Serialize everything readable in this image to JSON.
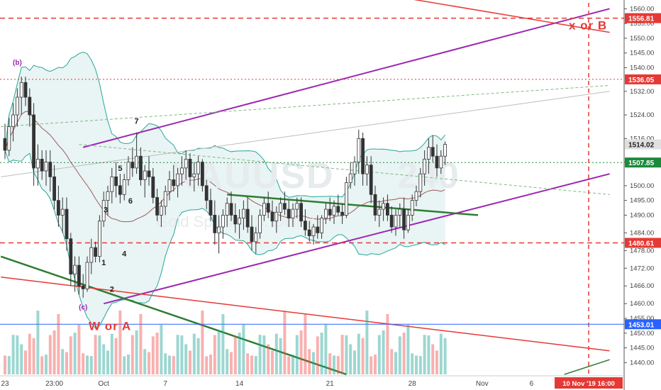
{
  "chart_data": {
    "type": "candlestick",
    "title": "",
    "watermark": {
      "symbol": "XAUUSD",
      "timeframe": "240",
      "name": "Gold Spot / U.S. Dollar"
    },
    "y_axis": {
      "min": 1436,
      "max": 1562,
      "ticks": [
        1560,
        1555,
        1550,
        1545,
        1540,
        1532,
        1524,
        1516,
        1508,
        1500,
        1495,
        1490,
        1484,
        1478,
        1472,
        1466,
        1460,
        1455,
        1450,
        1445,
        1440
      ]
    },
    "x_axis": {
      "ticks": [
        {
          "label": "23",
          "index": 0
        },
        {
          "label": "23:00",
          "index": 12
        },
        {
          "label": "Oct",
          "index": 24
        },
        {
          "label": "7",
          "index": 39
        },
        {
          "label": "14",
          "index": 57
        },
        {
          "label": "21",
          "index": 79
        },
        {
          "label": "28",
          "index": 99
        },
        {
          "label": "Nov",
          "index": 116
        },
        {
          "label": "6",
          "index": 128
        },
        {
          "label": "13",
          "index": 143
        }
      ],
      "cursor_label": "10 Nov '19   16:00"
    },
    "price_levels": [
      {
        "value": 1556.81,
        "label": "1556.81",
        "color": "#e53935",
        "style": "dashed"
      },
      {
        "value": 1536.05,
        "label": "1536.05",
        "color": "#e53935",
        "style": "dotted"
      },
      {
        "value": 1480.61,
        "label": "1480.61",
        "color": "#e53935",
        "style": "dashed"
      },
      {
        "value": 1507.85,
        "label": "1507.85",
        "color": "#1b8a3a",
        "style": "dotted"
      },
      {
        "value": 1453.01,
        "label": "1453.01",
        "color": "#2962ff",
        "style": "solid"
      }
    ],
    "last_price": {
      "value": 1514.02,
      "label": "1514.02"
    },
    "wave_labels": [
      {
        "text": "(b)",
        "index": 3,
        "price": 1541
      },
      {
        "text": "(c)",
        "index": 19,
        "price": 1458
      },
      {
        "text": "1",
        "index": 24,
        "price": 1473
      },
      {
        "text": "2",
        "index": 26,
        "price": 1464
      },
      {
        "text": "3",
        "index": 24.5,
        "price": 1491
      },
      {
        "text": "4",
        "index": 29,
        "price": 1476
      },
      {
        "text": "5",
        "index": 28,
        "price": 1505
      },
      {
        "text": "6",
        "index": 30.5,
        "price": 1494
      },
      {
        "text": "7",
        "index": 32,
        "price": 1521
      }
    ],
    "annotations": [
      {
        "text": "W or A",
        "index": 27,
        "price": 1451,
        "color": "#e53935"
      },
      {
        "text": "x or B",
        "index": 137,
        "price": 1553,
        "color": "#e53935"
      }
    ],
    "colors": {
      "up": "#26a69a",
      "down": "#ef5350",
      "candle_body": "#333333",
      "bollinger": "#26a69a",
      "bollinger_fill": "#e3f1f1",
      "trend_purple": "#9c27b0",
      "trend_red": "#e53935",
      "trend_green": "#2e7d32"
    },
    "candles": [
      [
        1516,
        1521,
        1509,
        1512
      ],
      [
        1512,
        1523,
        1510,
        1520
      ],
      [
        1520,
        1528,
        1515,
        1524
      ],
      [
        1524,
        1533,
        1520,
        1530
      ],
      [
        1530,
        1537,
        1524,
        1535
      ],
      [
        1535,
        1537,
        1527,
        1530
      ],
      [
        1530,
        1533,
        1520,
        1524
      ],
      [
        1524,
        1528,
        1500,
        1506
      ],
      [
        1506,
        1514,
        1500,
        1509
      ],
      [
        1509,
        1512,
        1502,
        1505
      ],
      [
        1505,
        1512,
        1500,
        1508
      ],
      [
        1508,
        1512,
        1498,
        1503
      ],
      [
        1503,
        1507,
        1492,
        1495
      ],
      [
        1495,
        1500,
        1486,
        1490
      ],
      [
        1490,
        1496,
        1484,
        1492
      ],
      [
        1492,
        1496,
        1478,
        1482
      ],
      [
        1482,
        1484,
        1466,
        1470
      ],
      [
        1470,
        1476,
        1464,
        1473
      ],
      [
        1473,
        1476,
        1463,
        1466
      ],
      [
        1466,
        1470,
        1462,
        1465
      ],
      [
        1465,
        1476,
        1464,
        1474
      ],
      [
        1474,
        1482,
        1470,
        1479
      ],
      [
        1479,
        1481,
        1474,
        1476
      ],
      [
        1476,
        1490,
        1474,
        1488
      ],
      [
        1488,
        1498,
        1486,
        1495
      ],
      [
        1495,
        1500,
        1490,
        1498
      ],
      [
        1498,
        1506,
        1494,
        1503
      ],
      [
        1503,
        1508,
        1496,
        1500
      ],
      [
        1500,
        1504,
        1494,
        1497
      ],
      [
        1497,
        1504,
        1495,
        1502
      ],
      [
        1502,
        1510,
        1500,
        1508
      ],
      [
        1508,
        1513,
        1503,
        1506
      ],
      [
        1506,
        1518,
        1504,
        1510
      ],
      [
        1510,
        1513,
        1500,
        1502
      ],
      [
        1502,
        1507,
        1496,
        1505
      ],
      [
        1505,
        1510,
        1500,
        1503
      ],
      [
        1503,
        1506,
        1494,
        1496
      ],
      [
        1496,
        1499,
        1488,
        1490
      ],
      [
        1490,
        1495,
        1486,
        1493
      ],
      [
        1493,
        1500,
        1490,
        1498
      ],
      [
        1498,
        1505,
        1495,
        1502
      ],
      [
        1502,
        1507,
        1498,
        1500
      ],
      [
        1500,
        1506,
        1496,
        1504
      ],
      [
        1504,
        1510,
        1500,
        1506
      ],
      [
        1506,
        1512,
        1502,
        1509
      ],
      [
        1509,
        1511,
        1500,
        1503
      ],
      [
        1503,
        1508,
        1498,
        1504
      ],
      [
        1504,
        1510,
        1500,
        1508
      ],
      [
        1508,
        1509,
        1498,
        1500
      ],
      [
        1500,
        1502,
        1492,
        1495
      ],
      [
        1495,
        1499,
        1488,
        1490
      ],
      [
        1490,
        1495,
        1480,
        1484
      ],
      [
        1484,
        1490,
        1477,
        1486
      ],
      [
        1486,
        1492,
        1482,
        1490
      ],
      [
        1490,
        1496,
        1486,
        1494
      ],
      [
        1494,
        1498,
        1488,
        1490
      ],
      [
        1490,
        1494,
        1484,
        1487
      ],
      [
        1487,
        1492,
        1482,
        1489
      ],
      [
        1489,
        1495,
        1485,
        1492
      ],
      [
        1492,
        1496,
        1484,
        1486
      ],
      [
        1486,
        1490,
        1478,
        1481
      ],
      [
        1481,
        1486,
        1477,
        1484
      ],
      [
        1484,
        1492,
        1482,
        1490
      ],
      [
        1490,
        1496,
        1488,
        1494
      ],
      [
        1494,
        1498,
        1489,
        1491
      ],
      [
        1491,
        1495,
        1486,
        1488
      ],
      [
        1488,
        1493,
        1484,
        1491
      ],
      [
        1491,
        1496,
        1488,
        1494
      ],
      [
        1494,
        1498,
        1490,
        1492
      ],
      [
        1492,
        1495,
        1486,
        1489
      ],
      [
        1489,
        1494,
        1486,
        1492
      ],
      [
        1492,
        1496,
        1489,
        1494
      ],
      [
        1494,
        1496,
        1486,
        1488
      ],
      [
        1488,
        1492,
        1483,
        1485
      ],
      [
        1485,
        1488,
        1481,
        1483
      ],
      [
        1483,
        1487,
        1480,
        1486
      ],
      [
        1486,
        1490,
        1482,
        1484
      ],
      [
        1484,
        1490,
        1482,
        1489
      ],
      [
        1489,
        1494,
        1487,
        1492
      ],
      [
        1492,
        1496,
        1488,
        1490
      ],
      [
        1490,
        1495,
        1487,
        1493
      ],
      [
        1493,
        1497,
        1490,
        1491
      ],
      [
        1491,
        1494,
        1487,
        1490
      ],
      [
        1490,
        1503,
        1489,
        1501
      ],
      [
        1501,
        1508,
        1499,
        1504
      ],
      [
        1504,
        1510,
        1500,
        1508
      ],
      [
        1508,
        1519,
        1504,
        1516
      ],
      [
        1516,
        1518,
        1500,
        1504
      ],
      [
        1504,
        1510,
        1500,
        1507
      ],
      [
        1507,
        1510,
        1494,
        1497
      ],
      [
        1497,
        1500,
        1488,
        1490
      ],
      [
        1490,
        1495,
        1486,
        1492
      ],
      [
        1492,
        1496,
        1488,
        1494
      ],
      [
        1494,
        1497,
        1488,
        1490
      ],
      [
        1490,
        1493,
        1484,
        1486
      ],
      [
        1486,
        1492,
        1483,
        1490
      ],
      [
        1490,
        1494,
        1486,
        1492
      ],
      [
        1492,
        1496,
        1482,
        1485
      ],
      [
        1485,
        1492,
        1484,
        1490
      ],
      [
        1490,
        1497,
        1488,
        1495
      ],
      [
        1495,
        1500,
        1493,
        1498
      ],
      [
        1498,
        1506,
        1496,
        1504
      ],
      [
        1504,
        1512,
        1500,
        1509
      ],
      [
        1509,
        1516,
        1504,
        1513
      ],
      [
        1513,
        1517,
        1508,
        1510
      ],
      [
        1510,
        1514,
        1503,
        1506
      ],
      [
        1506,
        1512,
        1504,
        1510
      ],
      [
        1510,
        1515,
        1507,
        1514
      ]
    ]
  }
}
